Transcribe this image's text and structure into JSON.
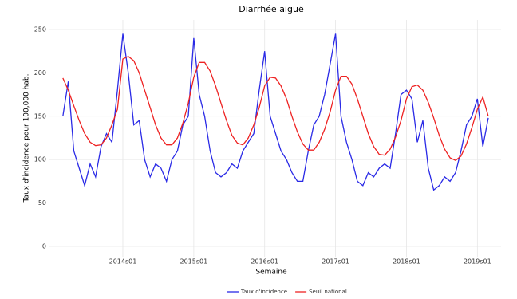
{
  "chart_data": {
    "type": "line",
    "title": "Diarrhée aiguë",
    "x_label": "Semaine",
    "y_label": "Taux d'incidence pour 100,000 hab.",
    "categories": [
      null,
      null,
      null,
      null,
      null,
      null,
      null,
      null,
      null,
      null,
      null,
      "2014s01",
      null,
      null,
      null,
      null,
      null,
      null,
      null,
      null,
      null,
      null,
      null,
      null,
      "2015s01",
      null,
      null,
      null,
      null,
      null,
      null,
      null,
      null,
      null,
      null,
      null,
      null,
      "2016s01",
      null,
      null,
      null,
      null,
      null,
      null,
      null,
      null,
      null,
      null,
      null,
      null,
      "2017s01",
      null,
      null,
      null,
      null,
      null,
      null,
      null,
      null,
      null,
      null,
      null,
      null,
      "2018s01",
      null,
      null,
      null,
      null,
      null,
      null,
      null,
      null,
      null,
      null,
      null,
      null,
      "2019s01",
      null,
      null
    ],
    "series": [
      {
        "name": "Taux d'incidence",
        "color": "#2a2ae6",
        "values": [
          150,
          190,
          110,
          90,
          70,
          95,
          80,
          115,
          130,
          120,
          180,
          245,
          200,
          140,
          145,
          100,
          80,
          95,
          90,
          75,
          100,
          110,
          140,
          150,
          240,
          175,
          150,
          110,
          85,
          80,
          85,
          95,
          90,
          110,
          120,
          130,
          180,
          225,
          150,
          130,
          110,
          100,
          85,
          75,
          75,
          110,
          140,
          150,
          175,
          210,
          245,
          150,
          120,
          100,
          75,
          70,
          85,
          80,
          90,
          95,
          90,
          130,
          175,
          180,
          170,
          120,
          145,
          90,
          65,
          70,
          80,
          75,
          85,
          110,
          140,
          150,
          170,
          115,
          148
        ]
      },
      {
        "name": "Seuil national",
        "color": "#ee2222",
        "values": [
          194,
          180,
          162,
          145,
          130,
          120,
          116,
          117,
          125,
          140,
          158,
          216,
          219,
          214,
          200,
          180,
          160,
          140,
          125,
          117,
          117,
          125,
          142,
          165,
          195,
          212,
          212,
          202,
          185,
          165,
          145,
          128,
          119,
          117,
          125,
          140,
          160,
          185,
          195,
          194,
          185,
          170,
          150,
          132,
          118,
          111,
          111,
          120,
          135,
          155,
          180,
          196,
          196,
          187,
          170,
          150,
          130,
          115,
          106,
          105,
          112,
          126,
          145,
          170,
          184,
          186,
          180,
          166,
          148,
          128,
          112,
          102,
          99,
          104,
          118,
          137,
          158,
          172,
          150
        ]
      }
    ],
    "ylim": [
      -12,
      261
    ],
    "yticks": [
      0,
      50,
      100,
      150,
      200,
      250
    ],
    "grid": true,
    "legend": "bottom"
  }
}
